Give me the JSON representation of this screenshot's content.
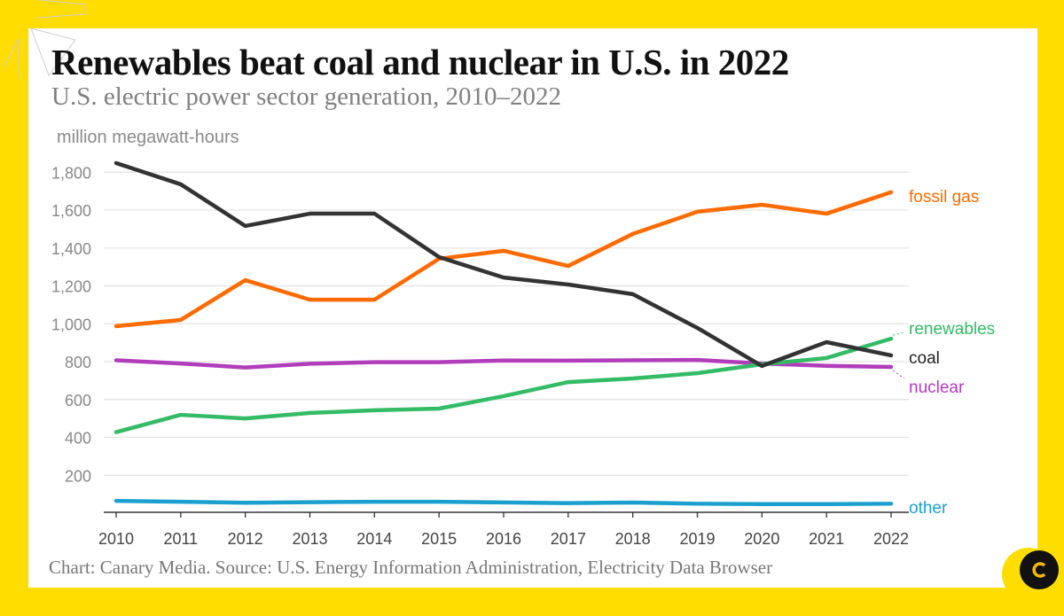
{
  "title": "Renewables beat coal and nuclear in U.S. in 2022",
  "subtitle": "U.S. electric power sector generation, 2010–2022",
  "source": "Chart: Canary Media. Source: U.S. Energy Information Administration, Electricity Data Browser",
  "logo_text": "c",
  "colors": {
    "background": "#FFDD00",
    "fossil_gas": "#FF6B00",
    "coal": "#333333",
    "renewables": "#33BB66",
    "nuclear": "#B13DBB",
    "other": "#1A9FCF"
  },
  "chart_data": {
    "type": "line",
    "ylabel": "million megawatt-hours",
    "ylim": [
      0,
      1900
    ],
    "yticks": [
      200,
      400,
      600,
      800,
      1000,
      1200,
      1400,
      1600,
      1800
    ],
    "ytick_labels": [
      "200",
      "400",
      "600",
      "800",
      "1,000",
      "1,200",
      "1,400",
      "1,600",
      "1,800"
    ],
    "grid": true,
    "x": [
      2010,
      2011,
      2012,
      2013,
      2014,
      2015,
      2016,
      2017,
      2018,
      2019,
      2020,
      2021,
      2022
    ],
    "x_labels": [
      "2010",
      "2011",
      "2012",
      "2013",
      "2014",
      "2015",
      "2016",
      "2017",
      "2018",
      "2019",
      "2020",
      "2021",
      "2022"
    ],
    "legend": "direct labels at line ends (right)",
    "series": [
      {
        "name": "fossil gas",
        "color": "#FF6B00",
        "values": [
          987,
          1020,
          1230,
          1127,
          1127,
          1343,
          1385,
          1305,
          1474,
          1591,
          1628,
          1581,
          1694
        ]
      },
      {
        "name": "coal",
        "color": "#333333",
        "values": [
          1848,
          1736,
          1516,
          1581,
          1581,
          1352,
          1244,
          1207,
          1156,
          978,
          777,
          903,
          833
        ]
      },
      {
        "name": "renewables",
        "color": "#33BB66",
        "values": [
          428,
          519,
          500,
          529,
          543,
          552,
          618,
          692,
          711,
          739,
          786,
          819,
          921
        ]
      },
      {
        "name": "nuclear",
        "color": "#B13DBB",
        "values": [
          807,
          790,
          769,
          789,
          797,
          797,
          806,
          805,
          807,
          809,
          790,
          778,
          772
        ]
      },
      {
        "name": "other",
        "color": "#1A9FCF",
        "values": [
          65,
          60,
          55,
          58,
          60,
          60,
          57,
          53,
          56,
          50,
          48,
          48,
          50
        ]
      }
    ]
  }
}
